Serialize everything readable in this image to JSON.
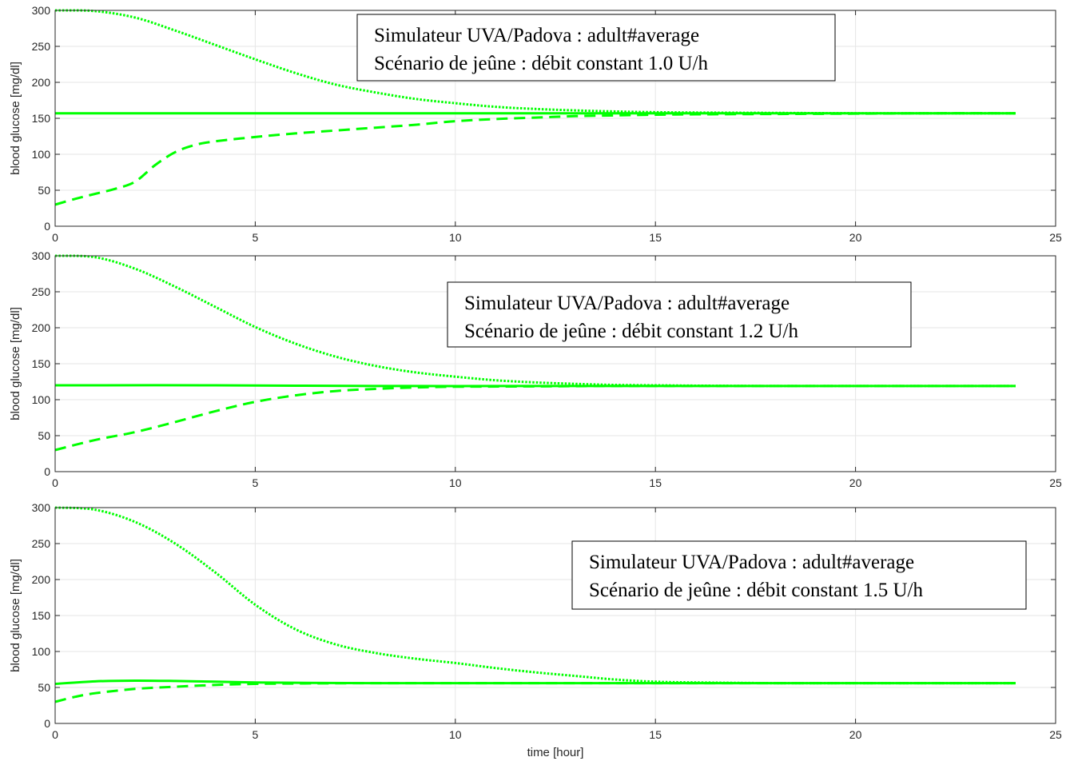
{
  "chart_data": [
    {
      "type": "line",
      "xlim": [
        0,
        25
      ],
      "ylim": [
        0,
        300
      ],
      "xticks": [
        0,
        5,
        10,
        15,
        20,
        25
      ],
      "yticks": [
        0,
        50,
        100,
        150,
        200,
        250,
        300
      ],
      "xlabel": "",
      "ylabel": "blood glucose [mg/dl]",
      "grid": true,
      "annotation": [
        "Simulateur UVA/Padova : adult#average",
        "Scénario de jeûne : débit constant 1.0 U/h"
      ],
      "annotation_position": "top-center",
      "series": [
        {
          "style": "dotted",
          "color": "#00ff00",
          "x": [
            0,
            1,
            2,
            3,
            4,
            5,
            6,
            7,
            8,
            9,
            10,
            11,
            12,
            13,
            14,
            15,
            16,
            18,
            20,
            22,
            24
          ],
          "y": [
            300,
            299,
            290,
            272,
            252,
            232,
            213,
            197,
            186,
            177,
            171,
            166,
            163,
            161,
            159.5,
            158.5,
            158,
            157.5,
            157,
            157,
            157
          ]
        },
        {
          "style": "solid",
          "color": "#00ff00",
          "x": [
            0,
            4,
            8,
            12,
            16,
            20,
            24
          ],
          "y": [
            157,
            157,
            157,
            157,
            157,
            157,
            157
          ]
        },
        {
          "style": "dashed",
          "color": "#00ff00",
          "x": [
            0,
            0.5,
            1,
            1.5,
            2,
            2.5,
            3,
            3.5,
            4,
            5,
            6,
            7,
            8,
            9,
            10,
            11,
            12,
            13,
            14,
            15,
            16,
            18,
            20,
            22,
            24
          ],
          "y": [
            30,
            38,
            45,
            52,
            62,
            85,
            103,
            113,
            118,
            124,
            129,
            133,
            137,
            141,
            146,
            149,
            151,
            153,
            154,
            155,
            155.5,
            156,
            156.5,
            157,
            157
          ]
        }
      ]
    },
    {
      "type": "line",
      "xlim": [
        0,
        25
      ],
      "ylim": [
        0,
        300
      ],
      "xticks": [
        0,
        5,
        10,
        15,
        20,
        25
      ],
      "yticks": [
        0,
        50,
        100,
        150,
        200,
        250,
        300
      ],
      "xlabel": "",
      "ylabel": "blood glucose [mg/dl]",
      "grid": true,
      "annotation": [
        "Simulateur UVA/Padova : adult#average",
        "Scénario de jeûne : débit constant 1.2 U/h"
      ],
      "annotation_position": "top-right",
      "series": [
        {
          "style": "dotted",
          "color": "#00ff00",
          "x": [
            0,
            1,
            2,
            3,
            4,
            5,
            6,
            7,
            8,
            9,
            10,
            11,
            12,
            13,
            14,
            15,
            16,
            18,
            20,
            22,
            24
          ],
          "y": [
            300,
            298,
            282,
            257,
            229,
            201,
            178,
            160,
            147,
            138,
            132,
            127,
            124,
            122,
            120.5,
            120,
            119.5,
            119,
            119,
            119,
            119
          ]
        },
        {
          "style": "solid",
          "color": "#00ff00",
          "x": [
            0,
            4,
            8,
            12,
            16,
            20,
            24
          ],
          "y": [
            120,
            120,
            119,
            119,
            119,
            119,
            119
          ]
        },
        {
          "style": "dashed",
          "color": "#00ff00",
          "x": [
            0,
            1,
            2,
            3,
            4,
            5,
            6,
            7,
            8,
            9,
            10,
            12,
            14,
            16,
            20,
            24
          ],
          "y": [
            30,
            44,
            55,
            69,
            84,
            97,
            106,
            112,
            115,
            117,
            118,
            118.5,
            119,
            119,
            119,
            119
          ]
        }
      ]
    },
    {
      "type": "line",
      "xlim": [
        0,
        25
      ],
      "ylim": [
        0,
        300
      ],
      "xticks": [
        0,
        5,
        10,
        15,
        20,
        25
      ],
      "yticks": [
        0,
        50,
        100,
        150,
        200,
        250,
        300
      ],
      "xlabel": "time [hour]",
      "ylabel": "blood glucose [mg/dl]",
      "grid": true,
      "annotation": [
        "Simulateur UVA/Padova : adult#average",
        "Scénario de jeûne : débit constant 1.5 U/h"
      ],
      "annotation_position": "right",
      "series": [
        {
          "style": "dotted",
          "color": "#00ff00",
          "x": [
            0,
            1,
            2,
            3,
            4,
            5,
            6,
            7,
            8,
            9,
            10,
            11,
            12,
            13,
            14,
            15,
            16,
            18,
            20,
            22,
            24
          ],
          "y": [
            300,
            297,
            280,
            250,
            210,
            165,
            131,
            110,
            98,
            90,
            84,
            77,
            71,
            66,
            61,
            58,
            57,
            56,
            56,
            56,
            56
          ]
        },
        {
          "style": "solid",
          "color": "#00ff00",
          "x": [
            0,
            1,
            2,
            3,
            4,
            5,
            6,
            8,
            10,
            14,
            18,
            24
          ],
          "y": [
            55,
            58.5,
            59.5,
            59,
            58,
            57,
            56.5,
            56,
            56,
            56,
            56,
            56
          ]
        },
        {
          "style": "dashed",
          "color": "#00ff00",
          "x": [
            0,
            0.5,
            1,
            2,
            3,
            4,
            5,
            6,
            8,
            10,
            14,
            24
          ],
          "y": [
            30,
            37,
            42,
            48,
            51,
            53.5,
            55,
            55.5,
            56,
            56,
            56,
            56
          ]
        }
      ]
    }
  ]
}
